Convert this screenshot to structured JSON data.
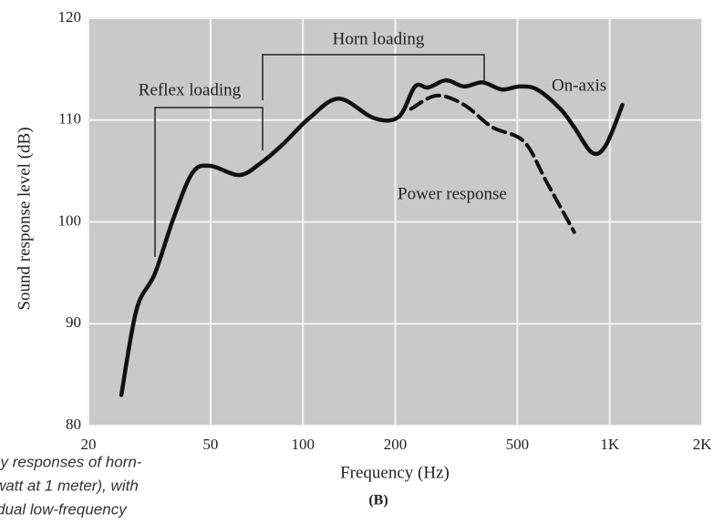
{
  "chart_data": {
    "type": "line",
    "xlabel": "Frequency (Hz)",
    "ylabel": "Sound response level (dB)",
    "sublabel": "(B)",
    "xscale": "log",
    "xlim": [
      20,
      2000
    ],
    "ylim": [
      80,
      120
    ],
    "xticks": [
      20,
      50,
      100,
      200,
      500,
      {
        "value": 1000,
        "label": "1K"
      },
      {
        "value": 2000,
        "label": "2K"
      }
    ],
    "yticks": [
      80,
      90,
      100,
      110,
      120
    ],
    "grid": true,
    "annotations": [
      "Horn loading",
      "Reflex loading"
    ],
    "series": [
      {
        "name": "On-axis",
        "color": "#111111",
        "dashed": false,
        "x": [
          25.6,
          28.7,
          32.9,
          37.8,
          43.6,
          49.8,
          61.9,
          72.3,
          85.9,
          105,
          131,
          170,
          205,
          232,
          256,
          293,
          335,
          385,
          445,
          508,
          580,
          690,
          766,
          876,
          970,
          1100
        ],
        "values": [
          83.0,
          91.4,
          94.9,
          100.3,
          104.8,
          105.5,
          104.6,
          105.7,
          107.6,
          110.2,
          112.1,
          110.2,
          110.3,
          113.3,
          113.2,
          113.9,
          113.3,
          113.7,
          113.0,
          113.3,
          113.0,
          111.1,
          109.3,
          106.8,
          107.5,
          111.5
        ]
      },
      {
        "name": "Power response",
        "color": "#111111",
        "dashed": true,
        "x": [
          225,
          273,
          335,
          414,
          525,
          623,
          766
        ],
        "values": [
          111.1,
          112.4,
          111.5,
          109.3,
          107.9,
          103.9,
          99.0
        ]
      }
    ]
  },
  "caption": [
    "cy responses of horn-",
    "watt at 1 meter), with",
    "dual low-frequency"
  ]
}
